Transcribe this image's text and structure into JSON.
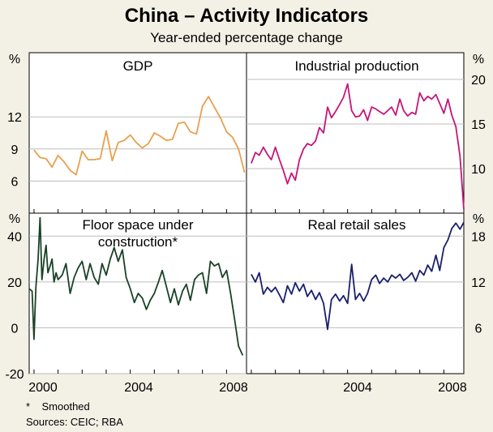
{
  "title": "China – Activity Indicators",
  "subtitle": "Year-ended percentage change",
  "footnote": "*    Smoothed",
  "sources": "Sources: CEIC; RBA",
  "x_axis": {
    "min": 1999.8,
    "max": 2008.83,
    "ticks": [
      2000,
      2004,
      2008
    ],
    "tick_labels": [
      "2000",
      "2004",
      "2008"
    ]
  },
  "chart_data": [
    {
      "type": "line",
      "panel": "top-left",
      "title": "GDP",
      "unit_label": "%",
      "color": "#e8a04e",
      "ylim": [
        3,
        18
      ],
      "yticks": [
        6,
        9,
        12
      ],
      "ytick_labels": [
        "6",
        "9",
        "12"
      ],
      "x": [
        2000.0,
        2000.25,
        2000.5,
        2000.75,
        2001.0,
        2001.25,
        2001.5,
        2001.75,
        2002.0,
        2002.25,
        2002.5,
        2002.75,
        2003.0,
        2003.25,
        2003.5,
        2003.75,
        2004.0,
        2004.25,
        2004.5,
        2004.75,
        2005.0,
        2005.25,
        2005.5,
        2005.75,
        2006.0,
        2006.25,
        2006.5,
        2006.75,
        2007.0,
        2007.25,
        2007.5,
        2007.75,
        2008.0,
        2008.25,
        2008.5,
        2008.75
      ],
      "values": [
        8.9,
        8.2,
        8.1,
        7.3,
        8.4,
        7.8,
        7.0,
        6.6,
        8.8,
        8.0,
        8.0,
        8.1,
        10.7,
        7.9,
        9.6,
        9.8,
        10.3,
        9.6,
        9.1,
        9.5,
        10.5,
        10.2,
        9.8,
        9.9,
        11.4,
        11.5,
        10.6,
        10.4,
        13.0,
        13.9,
        12.9,
        11.9,
        10.6,
        10.1,
        9.0,
        6.8
      ]
    },
    {
      "type": "line",
      "panel": "top-right",
      "title": "Industrial production",
      "unit_label": "%",
      "color": "#c5157a",
      "ylim": [
        5,
        23
      ],
      "yticks": [
        10,
        15,
        20
      ],
      "ytick_labels": [
        "10",
        "15",
        "20"
      ],
      "x": [
        2000.0,
        2000.17,
        2000.33,
        2000.5,
        2000.67,
        2000.83,
        2001.0,
        2001.17,
        2001.33,
        2001.5,
        2001.67,
        2001.83,
        2002.0,
        2002.17,
        2002.33,
        2002.5,
        2002.67,
        2002.83,
        2003.0,
        2003.17,
        2003.33,
        2003.5,
        2003.67,
        2003.83,
        2004.0,
        2004.17,
        2004.33,
        2004.5,
        2004.67,
        2004.83,
        2005.0,
        2005.17,
        2005.33,
        2005.5,
        2005.67,
        2005.83,
        2006.0,
        2006.17,
        2006.33,
        2006.5,
        2006.67,
        2006.83,
        2007.0,
        2007.17,
        2007.33,
        2007.5,
        2007.67,
        2007.83,
        2008.0,
        2008.17,
        2008.33,
        2008.5,
        2008.67,
        2008.83
      ],
      "values": [
        10.6,
        11.8,
        11.5,
        12.4,
        11.6,
        11.0,
        12.4,
        11.0,
        9.8,
        8.3,
        9.5,
        8.7,
        11.0,
        12.2,
        12.8,
        12.6,
        13.1,
        14.6,
        14.0,
        16.9,
        15.7,
        16.4,
        17.2,
        18.0,
        19.5,
        16.5,
        15.8,
        15.9,
        16.6,
        15.4,
        16.9,
        16.7,
        16.4,
        16.1,
        16.5,
        16.9,
        16.0,
        17.8,
        16.5,
        15.9,
        16.3,
        16.1,
        18.5,
        17.6,
        18.1,
        17.8,
        18.3,
        17.3,
        16.2,
        17.8,
        16.0,
        14.7,
        11.4,
        5.4
      ]
    },
    {
      "type": "line",
      "panel": "bottom-left",
      "title": "Floor space under construction*",
      "title_lines": [
        "Floor space under",
        "construction*"
      ],
      "unit_label": "%",
      "color": "#1a4226",
      "ylim": [
        -20,
        50
      ],
      "yticks": [
        -20,
        0,
        20,
        40
      ],
      "ytick_labels": [
        "-20",
        "0",
        "20",
        "40"
      ],
      "x": [
        1999.8,
        1999.92,
        2000.0,
        2000.08,
        2000.17,
        2000.25,
        2000.33,
        2000.42,
        2000.5,
        2000.58,
        2000.67,
        2000.75,
        2000.83,
        2000.92,
        2001.0,
        2001.17,
        2001.33,
        2001.5,
        2001.67,
        2001.83,
        2002.0,
        2002.17,
        2002.33,
        2002.5,
        2002.67,
        2002.83,
        2003.0,
        2003.17,
        2003.33,
        2003.5,
        2003.67,
        2003.83,
        2004.0,
        2004.17,
        2004.33,
        2004.5,
        2004.67,
        2004.83,
        2005.0,
        2005.17,
        2005.33,
        2005.5,
        2005.67,
        2005.83,
        2006.0,
        2006.17,
        2006.33,
        2006.5,
        2006.67,
        2006.83,
        2007.0,
        2007.17,
        2007.33,
        2007.5,
        2007.67,
        2007.83,
        2008.0,
        2008.17,
        2008.33,
        2008.5,
        2008.67
      ],
      "values": [
        17,
        16,
        -5,
        18,
        30,
        48,
        21,
        30,
        36,
        24,
        27,
        30,
        20,
        24,
        21,
        23,
        28,
        15,
        22,
        26,
        29,
        21,
        28,
        22,
        19,
        28,
        23,
        30,
        35,
        29,
        34,
        22,
        17,
        11,
        15,
        13,
        8,
        12,
        15,
        20,
        25,
        18,
        11,
        17,
        10,
        16,
        19,
        12,
        21,
        23,
        24,
        15,
        29,
        27,
        28,
        22,
        25,
        15,
        4,
        -8,
        -12
      ]
    },
    {
      "type": "line",
      "panel": "bottom-right",
      "title": "Real retail sales",
      "unit_label": "%",
      "color": "#1a1f6b",
      "ylim": [
        0,
        21
      ],
      "yticks": [
        6,
        12,
        18
      ],
      "ytick_labels": [
        "6",
        "12",
        "18"
      ],
      "x": [
        2000.0,
        2000.17,
        2000.33,
        2000.5,
        2000.67,
        2000.83,
        2001.0,
        2001.17,
        2001.33,
        2001.5,
        2001.67,
        2001.83,
        2002.0,
        2002.17,
        2002.33,
        2002.5,
        2002.67,
        2002.83,
        2003.0,
        2003.17,
        2003.33,
        2003.5,
        2003.67,
        2003.83,
        2004.0,
        2004.17,
        2004.33,
        2004.5,
        2004.67,
        2004.83,
        2005.0,
        2005.17,
        2005.33,
        2005.5,
        2005.67,
        2005.83,
        2006.0,
        2006.17,
        2006.33,
        2006.5,
        2006.67,
        2006.83,
        2007.0,
        2007.17,
        2007.33,
        2007.5,
        2007.67,
        2007.83,
        2008.0,
        2008.17,
        2008.33,
        2008.5,
        2008.67,
        2008.83
      ],
      "values": [
        13.0,
        12.0,
        13.2,
        10.4,
        11.3,
        10.7,
        11.3,
        10.3,
        9.3,
        11.5,
        10.4,
        11.9,
        10.8,
        11.7,
        10.1,
        10.9,
        9.7,
        10.6,
        9.2,
        5.8,
        9.7,
        10.4,
        9.5,
        10.2,
        9.2,
        14.3,
        9.7,
        10.5,
        9.5,
        10.5,
        12.3,
        12.9,
        11.8,
        12.5,
        12.0,
        12.9,
        12.5,
        13.0,
        12.2,
        12.6,
        13.2,
        12.1,
        13.5,
        12.9,
        14.2,
        13.4,
        15.5,
        13.5,
        16.5,
        17.5,
        19.0,
        19.7,
        18.9,
        19.8
      ]
    }
  ]
}
